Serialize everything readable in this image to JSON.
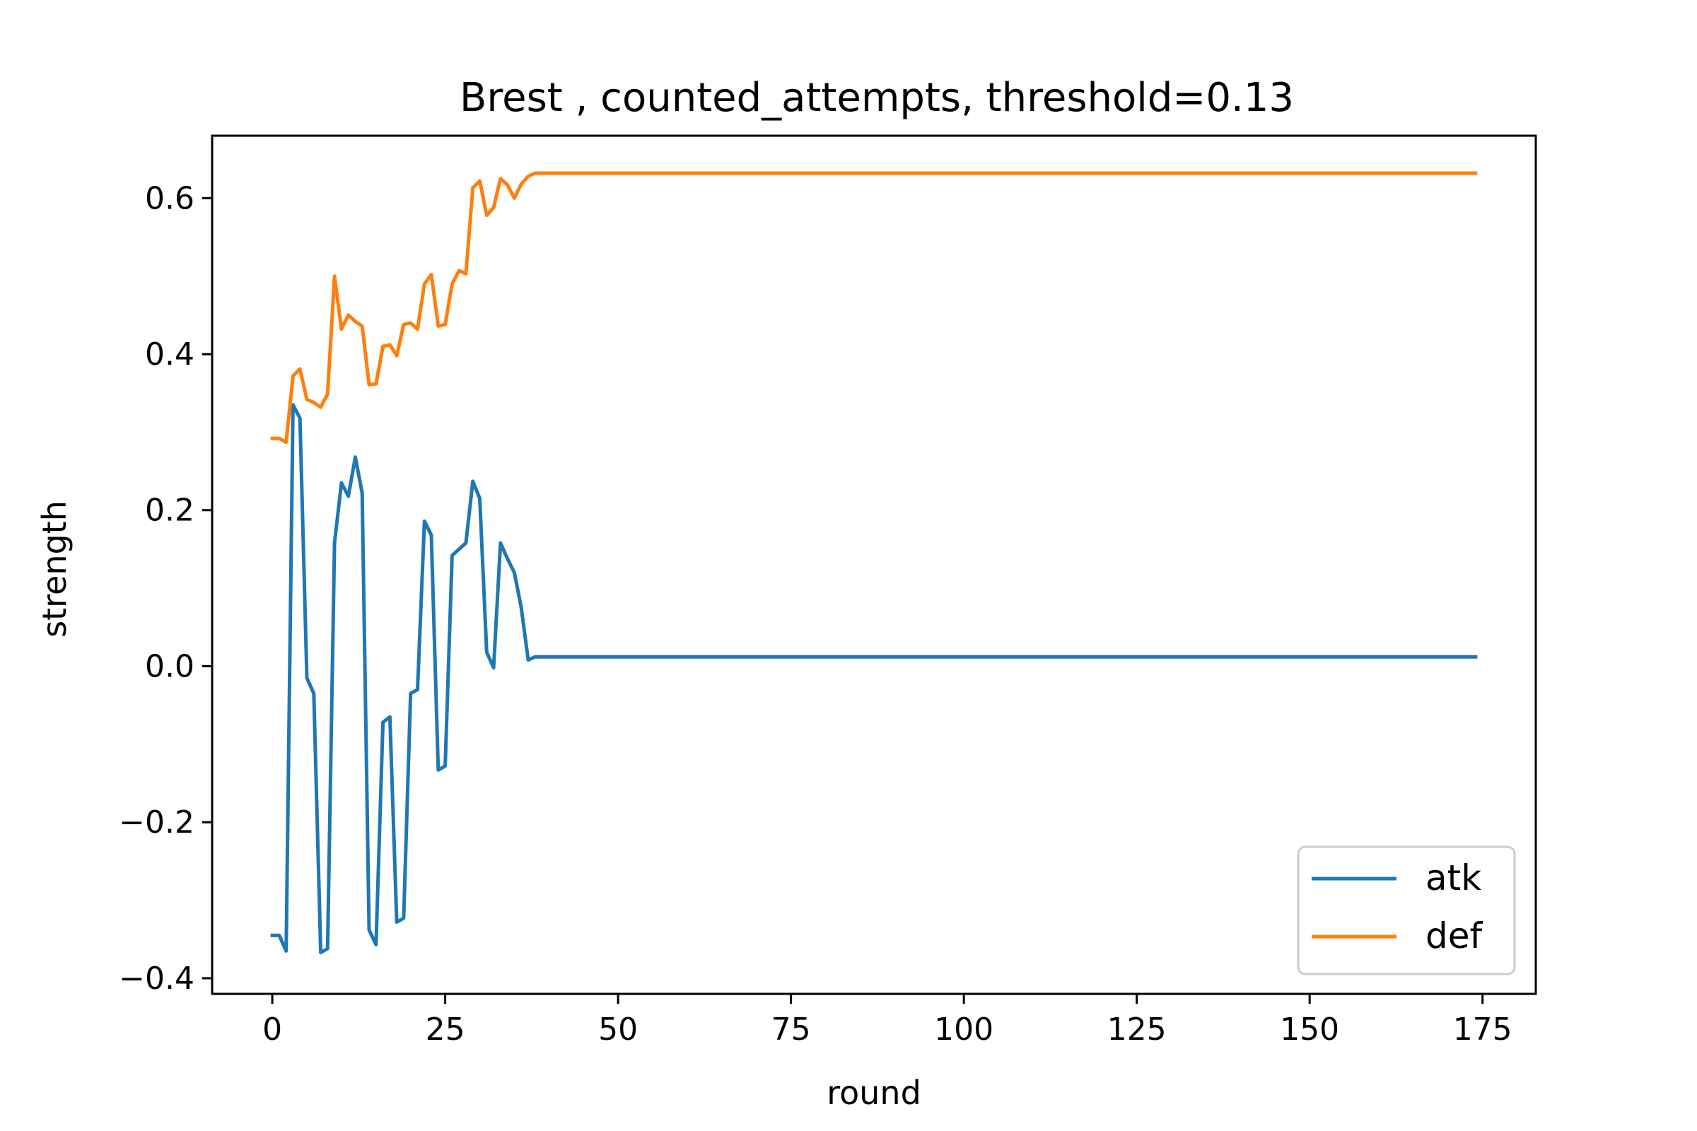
{
  "chart_data": {
    "type": "line",
    "title": "Brest , counted_attempts, threshold=0.13",
    "xlabel": "round",
    "ylabel": "strength",
    "xlim": [
      -8.7,
      182.7
    ],
    "ylim": [
      -0.42,
      0.68
    ],
    "xticks": [
      0,
      25,
      50,
      75,
      100,
      125,
      150,
      175
    ],
    "xtick_labels": [
      "0",
      "25",
      "50",
      "75",
      "100",
      "125",
      "150",
      "175"
    ],
    "yticks": [
      -0.4,
      -0.2,
      0.0,
      0.2,
      0.4,
      0.6
    ],
    "ytick_labels": [
      "−0.4",
      "−0.2",
      "0.0",
      "0.2",
      "0.4",
      "0.6"
    ],
    "grid": false,
    "legend_position": "lower-right",
    "series": [
      {
        "name": "atk",
        "color": "#1f77b4",
        "x": [
          0,
          1,
          2,
          3,
          4,
          5,
          6,
          7,
          8,
          9,
          10,
          11,
          12,
          13,
          14,
          15,
          16,
          17,
          18,
          19,
          20,
          21,
          22,
          23,
          24,
          25,
          26,
          27,
          28,
          29,
          30,
          31,
          32,
          33,
          34,
          35,
          36,
          37,
          38,
          174
        ],
        "y": [
          -0.345,
          -0.345,
          -0.365,
          0.335,
          0.318,
          -0.015,
          -0.035,
          -0.367,
          -0.362,
          0.158,
          0.235,
          0.218,
          0.268,
          0.222,
          -0.338,
          -0.357,
          -0.072,
          -0.065,
          -0.328,
          -0.323,
          -0.035,
          -0.03,
          0.186,
          0.168,
          -0.133,
          -0.128,
          0.142,
          0.15,
          0.158,
          0.237,
          0.215,
          0.018,
          -0.002,
          0.158,
          0.138,
          0.12,
          0.075,
          0.008,
          0.012,
          0.012
        ]
      },
      {
        "name": "def",
        "color": "#ff7f0e",
        "x": [
          0,
          1,
          2,
          3,
          4,
          5,
          6,
          7,
          8,
          9,
          10,
          11,
          12,
          13,
          14,
          15,
          16,
          17,
          18,
          19,
          20,
          21,
          22,
          23,
          24,
          25,
          26,
          27,
          28,
          29,
          30,
          31,
          32,
          33,
          34,
          35,
          36,
          37,
          38,
          174
        ],
        "y": [
          0.292,
          0.292,
          0.287,
          0.372,
          0.381,
          0.342,
          0.338,
          0.332,
          0.349,
          0.5,
          0.432,
          0.45,
          0.442,
          0.436,
          0.361,
          0.362,
          0.41,
          0.412,
          0.398,
          0.438,
          0.44,
          0.432,
          0.49,
          0.502,
          0.436,
          0.438,
          0.49,
          0.507,
          0.503,
          0.613,
          0.622,
          0.578,
          0.588,
          0.625,
          0.617,
          0.6,
          0.618,
          0.628,
          0.632,
          0.632
        ]
      }
    ]
  }
}
